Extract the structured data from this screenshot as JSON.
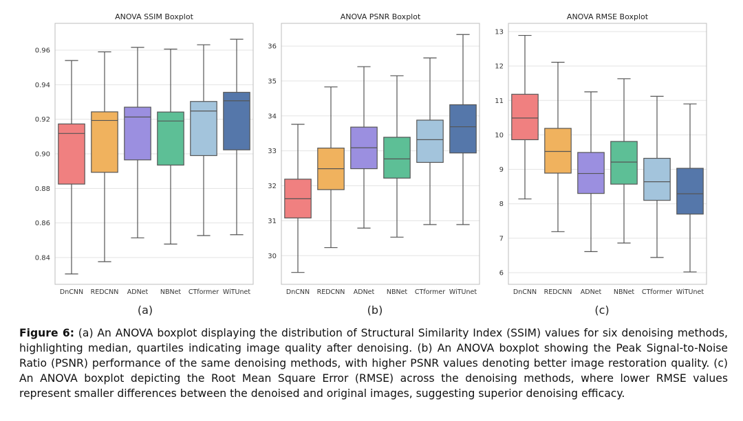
{
  "charts": [
    {
      "id": "ssim",
      "sub_label": "(a)",
      "chart_data": {
        "type": "boxplot",
        "title": "ANOVA SSIM Boxplot",
        "xlabel": "",
        "ylabel": "",
        "categories": [
          "DnCNN",
          "REDCNN",
          "ADNet",
          "NBNet",
          "CTformer",
          "WiTUnet"
        ],
        "colors": [
          "#f08080",
          "#f0b25e",
          "#9b8fe0",
          "#5dbf96",
          "#a3c4dc",
          "#5577aa"
        ],
        "ylim": [
          0.8245,
          0.9755
        ],
        "yticks": [
          0.84,
          0.86,
          0.88,
          0.9,
          0.92,
          0.94,
          0.96
        ],
        "ytick_labels": [
          "0.84",
          "0.86",
          "0.88",
          "0.90",
          "0.92",
          "0.94",
          "0.96"
        ],
        "grid": true,
        "boxes": [
          {
            "whislo": 0.8305,
            "q1": 0.8825,
            "med": 0.9118,
            "q3": 0.9173,
            "whishi": 0.954
          },
          {
            "whislo": 0.8376,
            "q1": 0.8893,
            "med": 0.9193,
            "q3": 0.9243,
            "whishi": 0.959
          },
          {
            "whislo": 0.8514,
            "q1": 0.8965,
            "med": 0.9213,
            "q3": 0.927,
            "whishi": 0.9616
          },
          {
            "whislo": 0.8478,
            "q1": 0.8935,
            "med": 0.919,
            "q3": 0.9242,
            "whishi": 0.9606
          },
          {
            "whislo": 0.8527,
            "q1": 0.899,
            "med": 0.9248,
            "q3": 0.9303,
            "whishi": 0.9631
          },
          {
            "whislo": 0.8532,
            "q1": 0.9023,
            "med": 0.9307,
            "q3": 0.9356,
            "whishi": 0.9663
          }
        ]
      }
    },
    {
      "id": "psnr",
      "sub_label": "(b)",
      "chart_data": {
        "type": "boxplot",
        "title": "ANOVA PSNR Boxplot",
        "xlabel": "",
        "ylabel": "",
        "categories": [
          "DnCNN",
          "REDCNN",
          "ADNet",
          "NBNet",
          "CTformer",
          "WiTUnet"
        ],
        "colors": [
          "#f08080",
          "#f0b25e",
          "#9b8fe0",
          "#5dbf96",
          "#a3c4dc",
          "#5577aa"
        ],
        "ylim": [
          29.18,
          36.65
        ],
        "yticks": [
          30,
          31,
          32,
          33,
          34,
          35,
          36
        ],
        "ytick_labels": [
          "30",
          "31",
          "32",
          "33",
          "34",
          "35",
          "36"
        ],
        "grid": true,
        "boxes": [
          {
            "whislo": 29.52,
            "q1": 31.08,
            "med": 31.63,
            "q3": 32.19,
            "whishi": 33.76
          },
          {
            "whislo": 30.23,
            "q1": 31.89,
            "med": 32.49,
            "q3": 33.08,
            "whishi": 34.83
          },
          {
            "whislo": 30.79,
            "q1": 32.49,
            "med": 33.09,
            "q3": 33.68,
            "whishi": 35.41
          },
          {
            "whislo": 30.53,
            "q1": 32.22,
            "med": 32.77,
            "q3": 33.39,
            "whishi": 35.15
          },
          {
            "whislo": 30.89,
            "q1": 32.67,
            "med": 33.32,
            "q3": 33.88,
            "whishi": 35.66
          },
          {
            "whislo": 30.89,
            "q1": 32.94,
            "med": 33.69,
            "q3": 34.32,
            "whishi": 36.33
          }
        ]
      }
    },
    {
      "id": "rmse",
      "sub_label": "(c)",
      "chart_data": {
        "type": "boxplot",
        "title": "ANOVA RMSE Boxplot",
        "xlabel": "",
        "ylabel": "",
        "categories": [
          "DnCNN",
          "REDCNN",
          "ADNet",
          "NBNet",
          "CTformer",
          "WiTUnet"
        ],
        "colors": [
          "#f08080",
          "#f0b25e",
          "#9b8fe0",
          "#5dbf96",
          "#a3c4dc",
          "#5577aa"
        ],
        "ylim": [
          5.66,
          13.24
        ],
        "yticks": [
          6,
          7,
          8,
          9,
          10,
          11,
          12,
          13
        ],
        "ytick_labels": [
          "6",
          "7",
          "8",
          "9",
          "10",
          "11",
          "12",
          "13"
        ],
        "grid": true,
        "boxes": [
          {
            "whislo": 8.14,
            "q1": 9.86,
            "med": 10.49,
            "q3": 11.18,
            "whishi": 12.89
          },
          {
            "whislo": 7.19,
            "q1": 8.89,
            "med": 9.52,
            "q3": 10.19,
            "whishi": 12.11
          },
          {
            "whislo": 6.61,
            "q1": 8.3,
            "med": 8.88,
            "q3": 9.49,
            "whishi": 11.25
          },
          {
            "whislo": 6.86,
            "q1": 8.57,
            "med": 9.21,
            "q3": 9.81,
            "whishi": 11.63
          },
          {
            "whislo": 6.44,
            "q1": 8.1,
            "med": 8.64,
            "q3": 9.32,
            "whishi": 11.12
          },
          {
            "whislo": 6.02,
            "q1": 7.7,
            "med": 8.29,
            "q3": 9.03,
            "whishi": 10.9
          }
        ]
      }
    }
  ],
  "caption": {
    "label": "Figure 6:",
    "text": " (a) An ANOVA boxplot displaying the distribution of Structural Similarity Index (SSIM) values for six denoising methods, highlighting median, quartiles indicating image quality after denoising. (b) An ANOVA boxplot showing the Peak Signal-to-Noise Ratio (PSNR) performance of the same denoising methods, with higher PSNR values denoting better image restoration quality. (c) An ANOVA boxplot depicting the Root Mean Square Error (RMSE) across the denoising methods, where lower RMSE values represent smaller differences between the denoised and original images, suggesting superior denoising efficacy."
  }
}
